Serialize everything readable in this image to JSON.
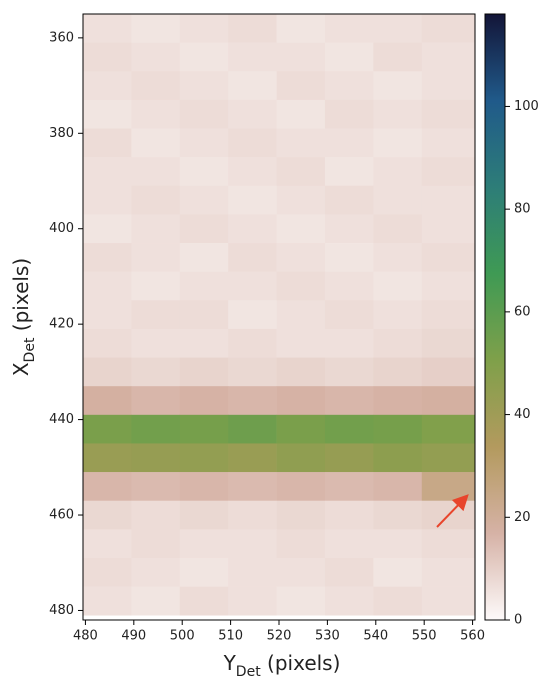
{
  "chart_data": {
    "type": "heatmap",
    "xlabel": {
      "main": "Y",
      "sub": "Det",
      "rest": " (pixels)"
    },
    "ylabel": {
      "main": "X",
      "sub": "Det",
      "rest": " (pixels)"
    },
    "x_edges": [
      479.5,
      489.5,
      499.5,
      509.5,
      519.5,
      529.5,
      539.5,
      549.5,
      560.5
    ],
    "y_edges": [
      355,
      361,
      367,
      373,
      379,
      385,
      391,
      397,
      403,
      409,
      415,
      421,
      427,
      433,
      439,
      445,
      451,
      457,
      463,
      469,
      475,
      481
    ],
    "z": [
      [
        6,
        5,
        6,
        7,
        5,
        6,
        6,
        7
      ],
      [
        7,
        6,
        5,
        6,
        6,
        5,
        7,
        6
      ],
      [
        6,
        7,
        6,
        5,
        7,
        6,
        5,
        6
      ],
      [
        5,
        6,
        7,
        6,
        5,
        7,
        6,
        7
      ],
      [
        7,
        5,
        6,
        7,
        6,
        6,
        5,
        6
      ],
      [
        6,
        6,
        5,
        6,
        7,
        5,
        6,
        7
      ],
      [
        6,
        7,
        6,
        5,
        6,
        7,
        6,
        6
      ],
      [
        5,
        6,
        7,
        6,
        5,
        6,
        7,
        6
      ],
      [
        7,
        6,
        5,
        7,
        6,
        5,
        6,
        7
      ],
      [
        6,
        5,
        6,
        6,
        7,
        6,
        5,
        6
      ],
      [
        6,
        7,
        7,
        5,
        6,
        7,
        6,
        7
      ],
      [
        7,
        6,
        6,
        7,
        6,
        6,
        7,
        8
      ],
      [
        9,
        8,
        9,
        8,
        9,
        8,
        9,
        10
      ],
      [
        18,
        16,
        17,
        16,
        17,
        16,
        17,
        18
      ],
      [
        52,
        54,
        53,
        55,
        52,
        54,
        53,
        50
      ],
      [
        42,
        43,
        44,
        42,
        45,
        43,
        46,
        44
      ],
      [
        16,
        15,
        16,
        15,
        16,
        15,
        16,
        24
      ],
      [
        8,
        7,
        8,
        7,
        8,
        7,
        8,
        9
      ],
      [
        6,
        7,
        6,
        6,
        7,
        6,
        6,
        7
      ],
      [
        7,
        6,
        5,
        6,
        6,
        7,
        5,
        6
      ],
      [
        6,
        5,
        7,
        6,
        5,
        6,
        7,
        6
      ]
    ],
    "xlim": [
      479.5,
      560.5
    ],
    "ylim": [
      482,
      355
    ],
    "xticks": [
      480,
      490,
      500,
      510,
      520,
      530,
      540,
      550,
      560
    ],
    "yticks": [
      360,
      380,
      400,
      420,
      440,
      460,
      480
    ],
    "clim": [
      0,
      118
    ],
    "cticks": [
      0,
      20,
      40,
      60,
      80,
      100
    ],
    "colormap": [
      "#fdfafa",
      "#d6b2a6",
      "#b39a5e",
      "#7fa04a",
      "#3f9a54",
      "#2d7d78",
      "#205a8a",
      "#131538"
    ]
  }
}
